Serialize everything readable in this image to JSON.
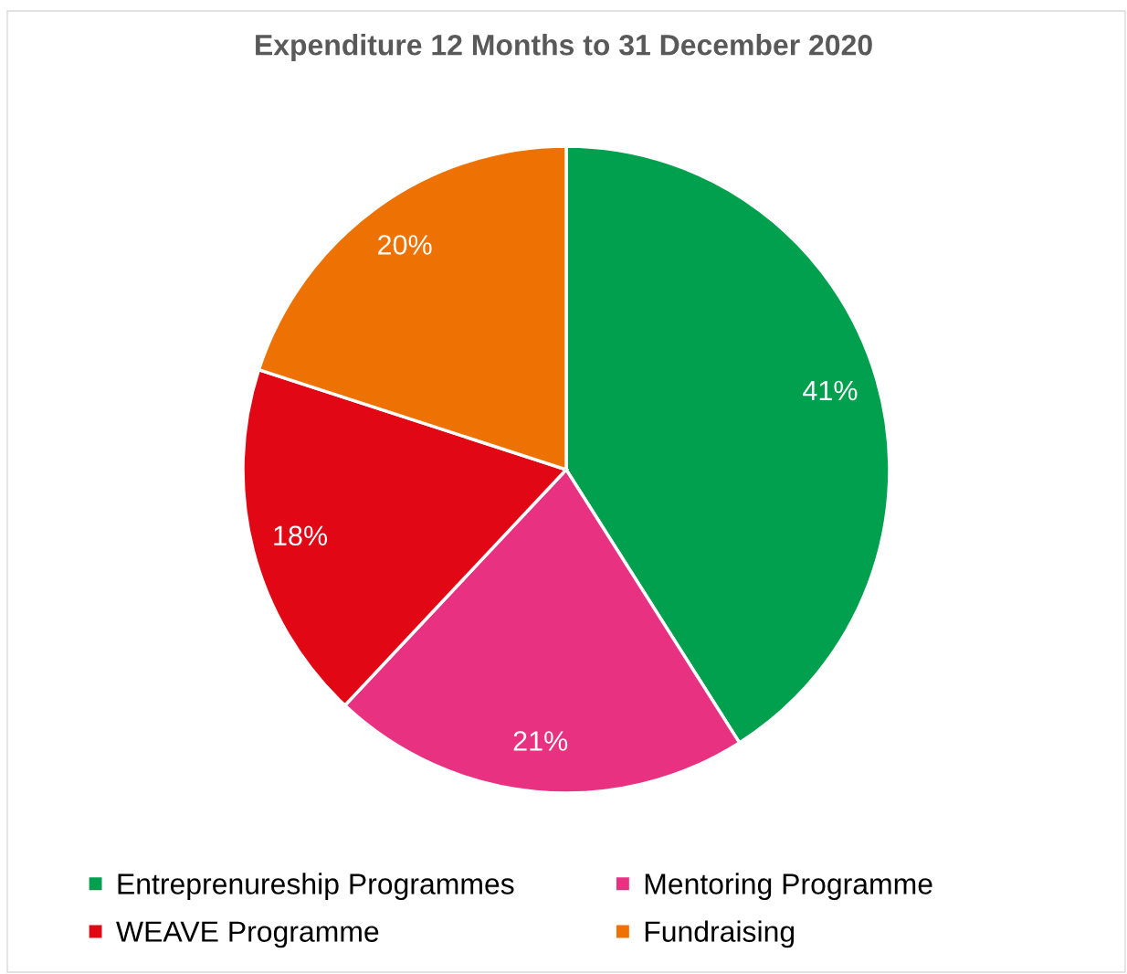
{
  "chart_data": {
    "type": "pie",
    "title": "Expenditure 12 Months to 31 December 2020",
    "categories": [
      "Entreprenureship Programmes",
      "Mentoring Programme",
      "WEAVE Programme",
      "Fundraising"
    ],
    "values": [
      41,
      21,
      18,
      20
    ],
    "colors": [
      "#00a04e",
      "#e83181",
      "#e20714",
      "#ee7203"
    ],
    "value_labels": [
      "41%",
      "21%",
      "18%",
      "20%"
    ],
    "legend": "bottom"
  }
}
